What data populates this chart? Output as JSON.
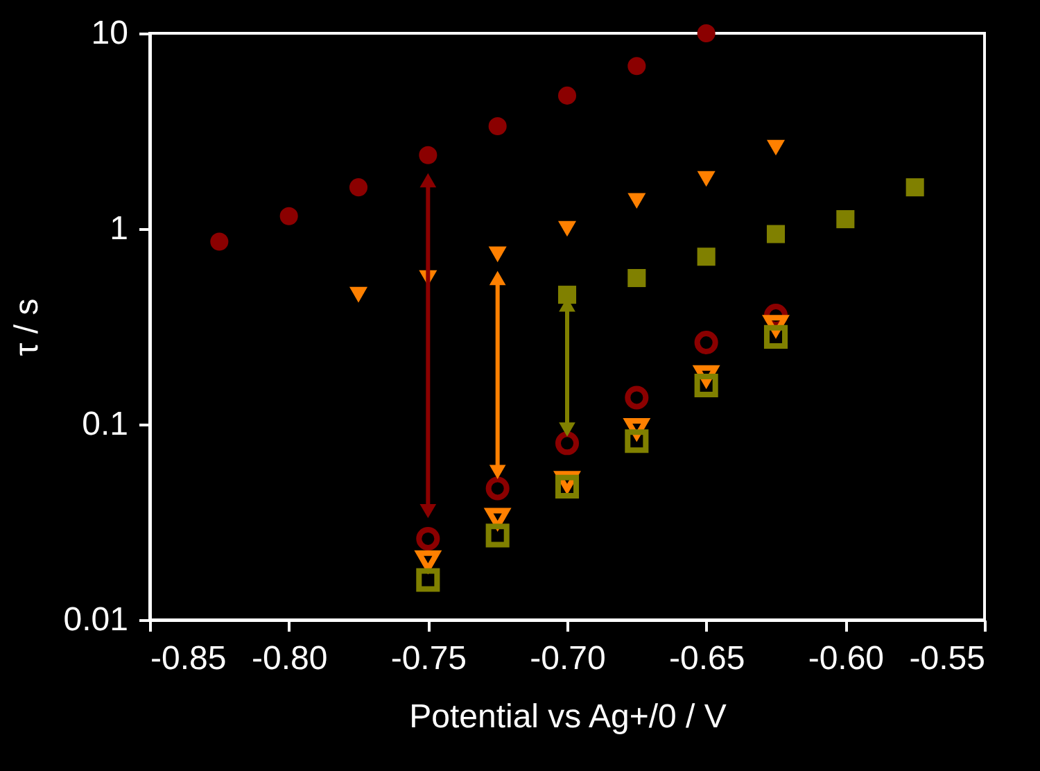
{
  "chart_data": {
    "type": "scatter",
    "xlabel": "Potential vs Ag+/0 / V",
    "ylabel": "τ / s",
    "log": "y",
    "grid": false,
    "xlim": [
      -0.85,
      -0.55
    ],
    "xticks": [
      {
        "value": -0.85,
        "label": "-0.85"
      },
      {
        "value": -0.8,
        "label": "-0.80"
      },
      {
        "value": -0.75,
        "label": "-0.75"
      },
      {
        "value": -0.7,
        "label": "-0.70"
      },
      {
        "value": -0.65,
        "label": "-0.65"
      },
      {
        "value": -0.6,
        "label": "-0.60"
      },
      {
        "value": -0.55,
        "label": "-0.55"
      }
    ],
    "ylim": [
      0.01,
      10
    ],
    "yticks": [
      0.01,
      0.1,
      1,
      10
    ],
    "series": [
      {
        "marker": "circle",
        "color": "#8b0000",
        "x": [
          -0.825,
          -0.8,
          -0.775,
          -0.75,
          -0.725,
          -0.7,
          -0.675,
          -0.65
        ],
        "values": [
          0.86,
          1.16,
          1.63,
          2.38,
          3.35,
          4.8,
          6.8,
          10
        ]
      },
      {
        "marker": "triangle",
        "color": "#ff8000",
        "x": [
          -0.775,
          -0.75,
          -0.725,
          -0.7,
          -0.675,
          -0.65,
          -0.625
        ],
        "values": [
          0.46,
          0.56,
          0.74,
          1.0,
          1.39,
          1.8,
          2.6
        ]
      },
      {
        "marker": "square",
        "color": "#808000",
        "x": [
          -0.7,
          -0.675,
          -0.65,
          -0.625,
          -0.6,
          -0.575
        ],
        "values": [
          0.46,
          0.56,
          0.72,
          0.94,
          1.12,
          1.63
        ]
      },
      {
        "marker": "circle-open",
        "color": "#8b0000",
        "x": [
          -0.75,
          -0.725,
          -0.7,
          -0.675,
          -0.65,
          -0.625
        ],
        "values": [
          0.026,
          0.047,
          0.08,
          0.137,
          0.262,
          0.36
        ]
      },
      {
        "marker": "triangle-open",
        "color": "#ff8000",
        "x": [
          -0.75,
          -0.725,
          -0.7,
          -0.675,
          -0.65,
          -0.625
        ],
        "values": [
          0.02,
          0.033,
          0.051,
          0.095,
          0.177,
          0.32
        ]
      },
      {
        "marker": "square-open",
        "color": "#808000",
        "x": [
          -0.75,
          -0.725,
          -0.7,
          -0.675,
          -0.65,
          -0.625
        ],
        "values": [
          0.016,
          0.027,
          0.048,
          0.082,
          0.158,
          0.28
        ]
      },
      {
        "type": "line",
        "marker": "triangle",
        "line_style": "solid",
        "color": "#8b0000",
        "x": [
          -0.75,
          -0.75
        ],
        "values": [
          1.77,
          0.036
        ]
      },
      {
        "type": "line",
        "marker": "triangle",
        "line_style": "solid",
        "color": "#ff8000",
        "x": [
          -0.725,
          -0.725
        ],
        "values": [
          0.56,
          0.057
        ]
      },
      {
        "type": "line",
        "marker": "triangle",
        "line_style": "solid",
        "color": "#808000",
        "x": [
          -0.7,
          -0.7
        ],
        "values": [
          0.41,
          0.094
        ]
      }
    ]
  }
}
